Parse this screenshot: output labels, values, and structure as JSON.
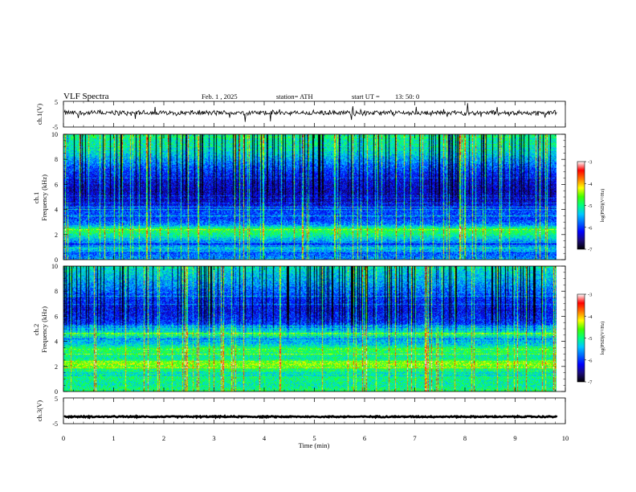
{
  "header": {
    "title": "VLF  Spectra",
    "date": "Feb. 1  , 2025",
    "station": "station= ATH",
    "start_label": "start  UT  =",
    "start_time": "13: 50: 0"
  },
  "chart_data": [
    {
      "type": "line",
      "panel": "ch1-waveform",
      "ylabel": "ch.1(V)",
      "ylim": [
        -5,
        5
      ],
      "ytick_labels": [
        "5",
        "-5"
      ],
      "xlim": [
        0,
        10
      ],
      "baseline_v": 0.5,
      "noise_amplitude_v": 1.2,
      "spike_amplitude_v": 3.0
    },
    {
      "type": "heatmap",
      "panel": "ch1-spectrogram",
      "ylabel": "ch.1\nFrequency  (kHz)",
      "ylim": [
        0,
        10
      ],
      "ytick_labels": [
        "0",
        "2",
        "4",
        "6",
        "8",
        "10"
      ],
      "xlim": [
        0,
        9.85
      ],
      "colorbar": {
        "label": "log(PSD)(V²/Hz)",
        "range": [
          -7,
          -3
        ],
        "tick_labels": [
          "-3",
          "-4",
          "-5",
          "-6",
          "-7"
        ]
      },
      "profile_khz": [
        0,
        0.5,
        0.9,
        1.2,
        1.5,
        2.0,
        2.4,
        2.8,
        3.3,
        3.8,
        4.5,
        5.5,
        6.5,
        7.5,
        8.5,
        10
      ],
      "profile_logpsd": [
        -5.6,
        -5.9,
        -5.3,
        -6.1,
        -5.5,
        -5.0,
        -4.8,
        -5.7,
        -6.0,
        -5.9,
        -6.3,
        -6.4,
        -6.2,
        -5.8,
        -5.3,
        -5.0
      ]
    },
    {
      "type": "heatmap",
      "panel": "ch2-spectrogram",
      "ylabel": "ch.2\nFrequency  (kHz)",
      "ylim": [
        0,
        10
      ],
      "ytick_labels": [
        "0",
        "2",
        "4",
        "6",
        "8",
        "10"
      ],
      "xlim": [
        0,
        9.85
      ],
      "colorbar": {
        "label": "log(PSD)(V²/Hz)",
        "range": [
          -7,
          -3
        ],
        "tick_labels": [
          "-3",
          "-4",
          "-5",
          "-6",
          "-7"
        ]
      },
      "profile_khz": [
        0,
        0.5,
        1.0,
        1.5,
        2.0,
        2.2,
        2.6,
        3.0,
        3.4,
        3.7,
        4.2,
        4.6,
        5.5,
        6.5,
        7.5,
        8.5,
        10
      ],
      "profile_logpsd": [
        -5.2,
        -5.4,
        -5.3,
        -5.2,
        -4.6,
        -4.4,
        -5.1,
        -5.0,
        -4.8,
        -5.3,
        -5.6,
        -5.0,
        -6.0,
        -6.2,
        -6.0,
        -5.6,
        -5.2
      ]
    },
    {
      "type": "line",
      "panel": "ch3-waveform",
      "ylabel": "ch.3(V)",
      "ylim": [
        -5,
        5
      ],
      "ytick_labels": [
        "5",
        "-5"
      ],
      "xlim": [
        0,
        10
      ],
      "baseline_v": -2.3,
      "noise_amplitude_v": 0.3
    }
  ],
  "xaxis": {
    "label": "Time  (min)",
    "range": [
      0,
      10
    ],
    "tick_labels": [
      "0",
      "1",
      "2",
      "3",
      "4",
      "5",
      "6",
      "7",
      "8",
      "9",
      "10"
    ],
    "data_end_min": 9.85
  },
  "colormap": [
    "#000000",
    "#1a0a78",
    "#0000ff",
    "#0066ff",
    "#00c8ff",
    "#00ff80",
    "#40ff00",
    "#ffff00",
    "#ff7a00",
    "#ff0000",
    "#ffffff"
  ]
}
